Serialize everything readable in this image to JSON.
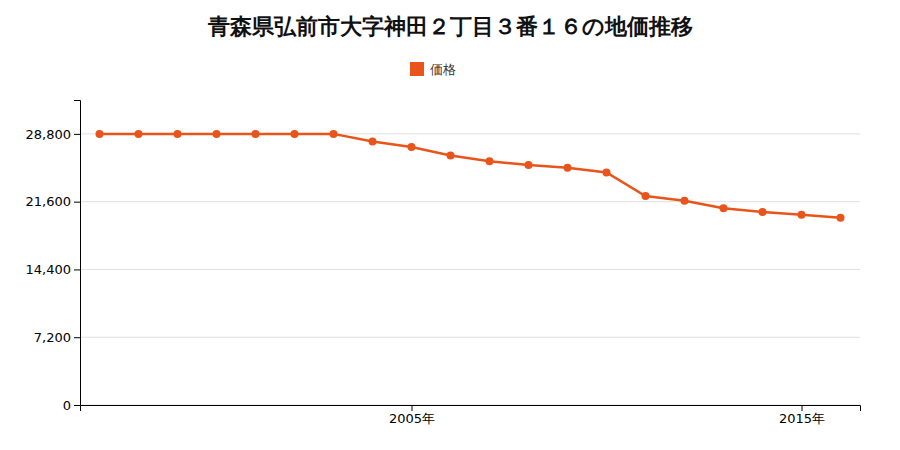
{
  "chart_data": {
    "type": "line",
    "title": "青森県弘前市大字神田２丁目３番１６の地価推移",
    "x": [
      1997,
      1998,
      1999,
      2000,
      2001,
      2002,
      2003,
      2004,
      2005,
      2006,
      2007,
      2008,
      2009,
      2010,
      2011,
      2012,
      2013,
      2014,
      2015,
      2016
    ],
    "series": [
      {
        "name": "価格",
        "color": "#e8541a",
        "marker": "circle",
        "values": [
          28800,
          28800,
          28800,
          28800,
          28800,
          28800,
          28800,
          28000,
          27400,
          26500,
          25900,
          25500,
          25200,
          24700,
          22200,
          21700,
          20900,
          20500,
          20200,
          19900
        ]
      }
    ],
    "xlim": [
      1996.5,
      2016.5
    ],
    "xticks": [
      {
        "value": 2005,
        "label": "2005年"
      },
      {
        "value": 2015,
        "label": "2015年"
      }
    ],
    "ylim": [
      0,
      32400
    ],
    "yticks": [
      0,
      {
        "value": 7200,
        "label": "7,200"
      },
      {
        "value": 14400,
        "label": "14,400"
      },
      {
        "value": 21600,
        "label": "21,600"
      },
      {
        "value": 28800,
        "label": "28,800"
      }
    ],
    "grid": true,
    "legend": "top"
  }
}
